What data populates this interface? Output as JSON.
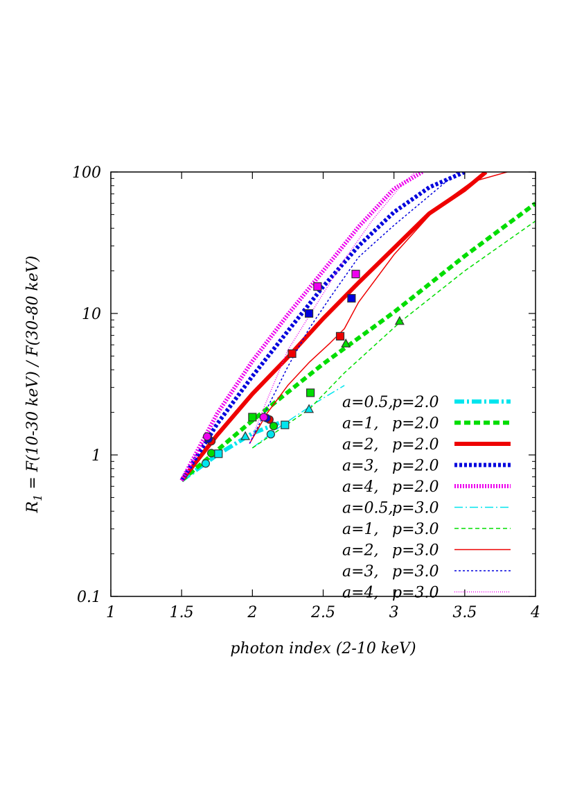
{
  "chart_data": {
    "type": "line",
    "xlabel": "photon index (2-10 keV)",
    "ylabel_main": "R",
    "ylabel_sub": "1",
    "ylabel_rest": " = F(10-30 keV) / F(30-80 keV)",
    "xlim": [
      1,
      4
    ],
    "ylim": [
      0.1,
      100
    ],
    "yscale": "log",
    "grid": false,
    "legend_position": "bottom-right",
    "x_ticks": [
      {
        "value": 1,
        "label": "1"
      },
      {
        "value": 1.5,
        "label": "1.5"
      },
      {
        "value": 2,
        "label": "2"
      },
      {
        "value": 2.5,
        "label": "2.5"
      },
      {
        "value": 3,
        "label": "3"
      },
      {
        "value": 3.5,
        "label": "3.5"
      },
      {
        "value": 4,
        "label": "4"
      }
    ],
    "y_ticks": [
      {
        "value": 0.1,
        "label": "0.1"
      },
      {
        "value": 1,
        "label": "1"
      },
      {
        "value": 10,
        "label": "10"
      },
      {
        "value": 100,
        "label": "100"
      }
    ],
    "series": [
      {
        "label_a": "a=0.5,",
        "label_p": "p=2.0",
        "color": "#00e5ee",
        "width": 6,
        "dash": "14,4,3,4",
        "points": [
          [
            1.5,
            0.66
          ],
          [
            1.75,
            1.0
          ],
          [
            2.0,
            1.42
          ],
          [
            2.2,
            1.7
          ]
        ]
      },
      {
        "label_a": "a=1,",
        "label_p": "p=2.0",
        "color": "#00dd00",
        "width": 6,
        "dash": "9,5",
        "points": [
          [
            1.5,
            0.66
          ],
          [
            2.0,
            1.75
          ],
          [
            2.5,
            4.4
          ],
          [
            3.0,
            10.2
          ],
          [
            3.5,
            25.5
          ],
          [
            4.0,
            60
          ]
        ]
      },
      {
        "label_a": "a=2,",
        "label_p": "p=2.0",
        "color": "#ee0000",
        "width": 6,
        "dash": "",
        "points": [
          [
            1.5,
            0.66
          ],
          [
            1.75,
            1.38
          ],
          [
            2.0,
            2.7
          ],
          [
            2.25,
            4.9
          ],
          [
            2.5,
            9.2
          ],
          [
            2.75,
            16.5
          ],
          [
            3.0,
            29
          ],
          [
            3.25,
            51
          ],
          [
            3.5,
            75
          ],
          [
            3.65,
            100
          ]
        ]
      },
      {
        "label_a": "a=3,",
        "label_p": "p=2.0",
        "color": "#0000dd",
        "width": 6,
        "dash": "4,3",
        "points": [
          [
            1.5,
            0.66
          ],
          [
            1.75,
            1.65
          ],
          [
            2.0,
            3.6
          ],
          [
            2.25,
            7.5
          ],
          [
            2.5,
            15.5
          ],
          [
            2.75,
            30
          ],
          [
            3.0,
            52
          ],
          [
            3.25,
            78
          ],
          [
            3.5,
            100
          ]
        ]
      },
      {
        "label_a": "a=4,",
        "label_p": "p=2.0",
        "color": "#ee00ee",
        "width": 6,
        "dash": "2,2",
        "points": [
          [
            1.5,
            0.66
          ],
          [
            1.75,
            1.95
          ],
          [
            2.0,
            4.6
          ],
          [
            2.25,
            9.8
          ],
          [
            2.5,
            20
          ],
          [
            2.75,
            41
          ],
          [
            3.0,
            76
          ],
          [
            3.2,
            100
          ]
        ]
      },
      {
        "label_a": "a=0.5,",
        "label_p": "p=3.0",
        "color": "#00e5ee",
        "width": 1.5,
        "dash": "12,4,2,4",
        "points": [
          [
            2.0,
            1.12
          ],
          [
            2.2,
            1.6
          ],
          [
            2.45,
            2.35
          ],
          [
            2.65,
            3.1
          ]
        ]
      },
      {
        "label_a": "a=1,",
        "label_p": "p=3.0",
        "color": "#00dd00",
        "width": 1.5,
        "dash": "6,4",
        "points": [
          [
            2.0,
            1.12
          ],
          [
            2.4,
            2.1
          ],
          [
            2.65,
            3.8
          ],
          [
            3.05,
            8.8
          ],
          [
            3.5,
            20
          ],
          [
            4.0,
            45
          ]
        ]
      },
      {
        "label_a": "a=2,",
        "label_p": "p=3.0",
        "color": "#ee0000",
        "width": 1.5,
        "dash": "",
        "points": [
          [
            1.98,
            1.2
          ],
          [
            2.1,
            1.95
          ],
          [
            2.25,
            3.1
          ],
          [
            2.4,
            4.5
          ],
          [
            2.55,
            6.2
          ],
          [
            2.65,
            7.8
          ],
          [
            2.75,
            12
          ],
          [
            3.0,
            26
          ],
          [
            3.3,
            56
          ],
          [
            3.55,
            85
          ],
          [
            3.8,
            100
          ]
        ]
      },
      {
        "label_a": "a=3,",
        "label_p": "p=3.0",
        "color": "#0000dd",
        "width": 1.5,
        "dash": "3,3",
        "points": [
          [
            1.98,
            1.2
          ],
          [
            2.1,
            2.1
          ],
          [
            2.25,
            4.2
          ],
          [
            2.4,
            7.8
          ],
          [
            2.55,
            13
          ],
          [
            2.75,
            25
          ],
          [
            3.0,
            42
          ],
          [
            3.25,
            68
          ],
          [
            3.45,
            100
          ]
        ]
      },
      {
        "label_a": "a=4,",
        "label_p": "p=3.0",
        "color": "#ee00ee",
        "width": 1.5,
        "dash": "1,2",
        "points": [
          [
            1.98,
            1.2
          ],
          [
            2.1,
            2.4
          ],
          [
            2.25,
            5.5
          ],
          [
            2.45,
            11.5
          ],
          [
            2.65,
            24
          ],
          [
            2.85,
            46
          ],
          [
            3.05,
            80
          ],
          [
            3.15,
            100
          ]
        ]
      }
    ],
    "markers": [
      {
        "shape": "circle",
        "x": 1.67,
        "y": 0.87,
        "fill": "#00e5ee"
      },
      {
        "shape": "circle",
        "x": 1.71,
        "y": 1.03,
        "fill": "#00dd00"
      },
      {
        "shape": "circle",
        "x": 1.71,
        "y": 1.25,
        "fill": "#ee0000"
      },
      {
        "shape": "circle",
        "x": 1.69,
        "y": 1.3,
        "fill": "#0000dd"
      },
      {
        "shape": "circle",
        "x": 1.68,
        "y": 1.35,
        "fill": "#ee00ee"
      },
      {
        "shape": "square",
        "x": 1.76,
        "y": 1.02,
        "fill": "#00e5ee"
      },
      {
        "shape": "square",
        "x": 2.0,
        "y": 1.85,
        "fill": "#00dd00"
      },
      {
        "shape": "square",
        "x": 2.28,
        "y": 5.2,
        "fill": "#ee0000"
      },
      {
        "shape": "square",
        "x": 2.4,
        "y": 10,
        "fill": "#0000dd"
      },
      {
        "shape": "square",
        "x": 2.46,
        "y": 15.5,
        "fill": "#ee00ee"
      },
      {
        "shape": "triangle",
        "x": 1.95,
        "y": 1.35,
        "fill": "#00e5ee"
      },
      {
        "shape": "circle",
        "x": 2.13,
        "y": 1.4,
        "fill": "#00e5ee"
      },
      {
        "shape": "circle",
        "x": 2.15,
        "y": 1.6,
        "fill": "#00dd00"
      },
      {
        "shape": "circle",
        "x": 2.12,
        "y": 1.78,
        "fill": "#ee0000"
      },
      {
        "shape": "circle",
        "x": 2.1,
        "y": 1.82,
        "fill": "#0000dd"
      },
      {
        "shape": "circle",
        "x": 2.08,
        "y": 1.85,
        "fill": "#ee00ee"
      },
      {
        "shape": "square",
        "x": 2.23,
        "y": 1.63,
        "fill": "#00e5ee"
      },
      {
        "shape": "square",
        "x": 2.41,
        "y": 2.75,
        "fill": "#00dd00"
      },
      {
        "shape": "square",
        "x": 2.62,
        "y": 6.9,
        "fill": "#ee0000"
      },
      {
        "shape": "square",
        "x": 2.7,
        "y": 12.8,
        "fill": "#0000dd"
      },
      {
        "shape": "square",
        "x": 2.73,
        "y": 19,
        "fill": "#ee00ee"
      },
      {
        "shape": "triangle",
        "x": 2.4,
        "y": 2.1,
        "fill": "#00e5ee"
      },
      {
        "shape": "triangle",
        "x": 2.66,
        "y": 6.1,
        "fill": "#00dd00"
      },
      {
        "shape": "triangle",
        "x": 3.04,
        "y": 8.8,
        "fill": "#00dd00"
      }
    ]
  }
}
